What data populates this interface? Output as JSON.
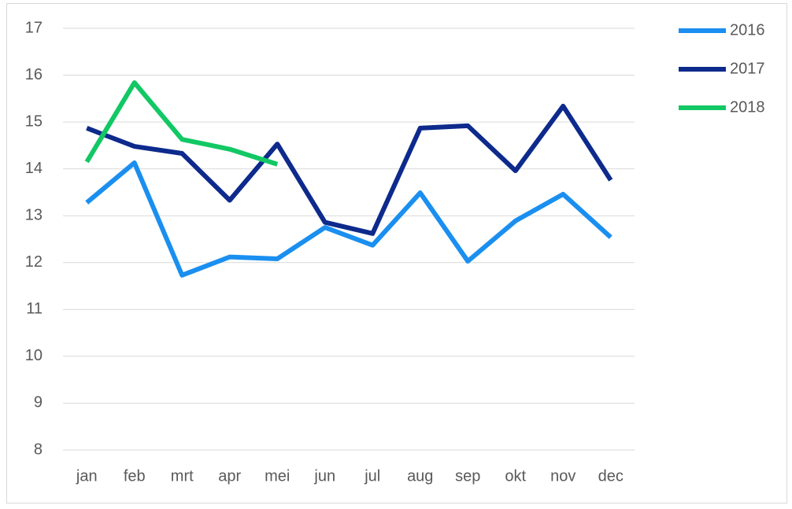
{
  "chart_data": {
    "type": "line",
    "categories": [
      "jan",
      "feb",
      "mrt",
      "apr",
      "mei",
      "jun",
      "jul",
      "aug",
      "sep",
      "okt",
      "nov",
      "dec"
    ],
    "series": [
      {
        "name": "2016",
        "color": "#1a8ff0",
        "values": [
          13.28,
          14.13,
          11.73,
          12.12,
          12.08,
          12.75,
          12.37,
          13.49,
          12.03,
          12.89,
          13.46,
          12.54
        ]
      },
      {
        "name": "2017",
        "color": "#0d2a8c",
        "values": [
          14.87,
          14.48,
          14.33,
          13.33,
          14.53,
          12.86,
          12.62,
          14.87,
          14.92,
          13.96,
          15.34,
          13.76
        ]
      },
      {
        "name": "2018",
        "color": "#12c864",
        "values": [
          14.15,
          15.84,
          14.63,
          14.42,
          14.1,
          null,
          null,
          null,
          null,
          null,
          null,
          null
        ]
      }
    ],
    "ylim": [
      8,
      17
    ],
    "yticks": [
      8,
      9,
      10,
      11,
      12,
      13,
      14,
      15,
      16,
      17
    ],
    "grid": true,
    "legend": "right"
  }
}
